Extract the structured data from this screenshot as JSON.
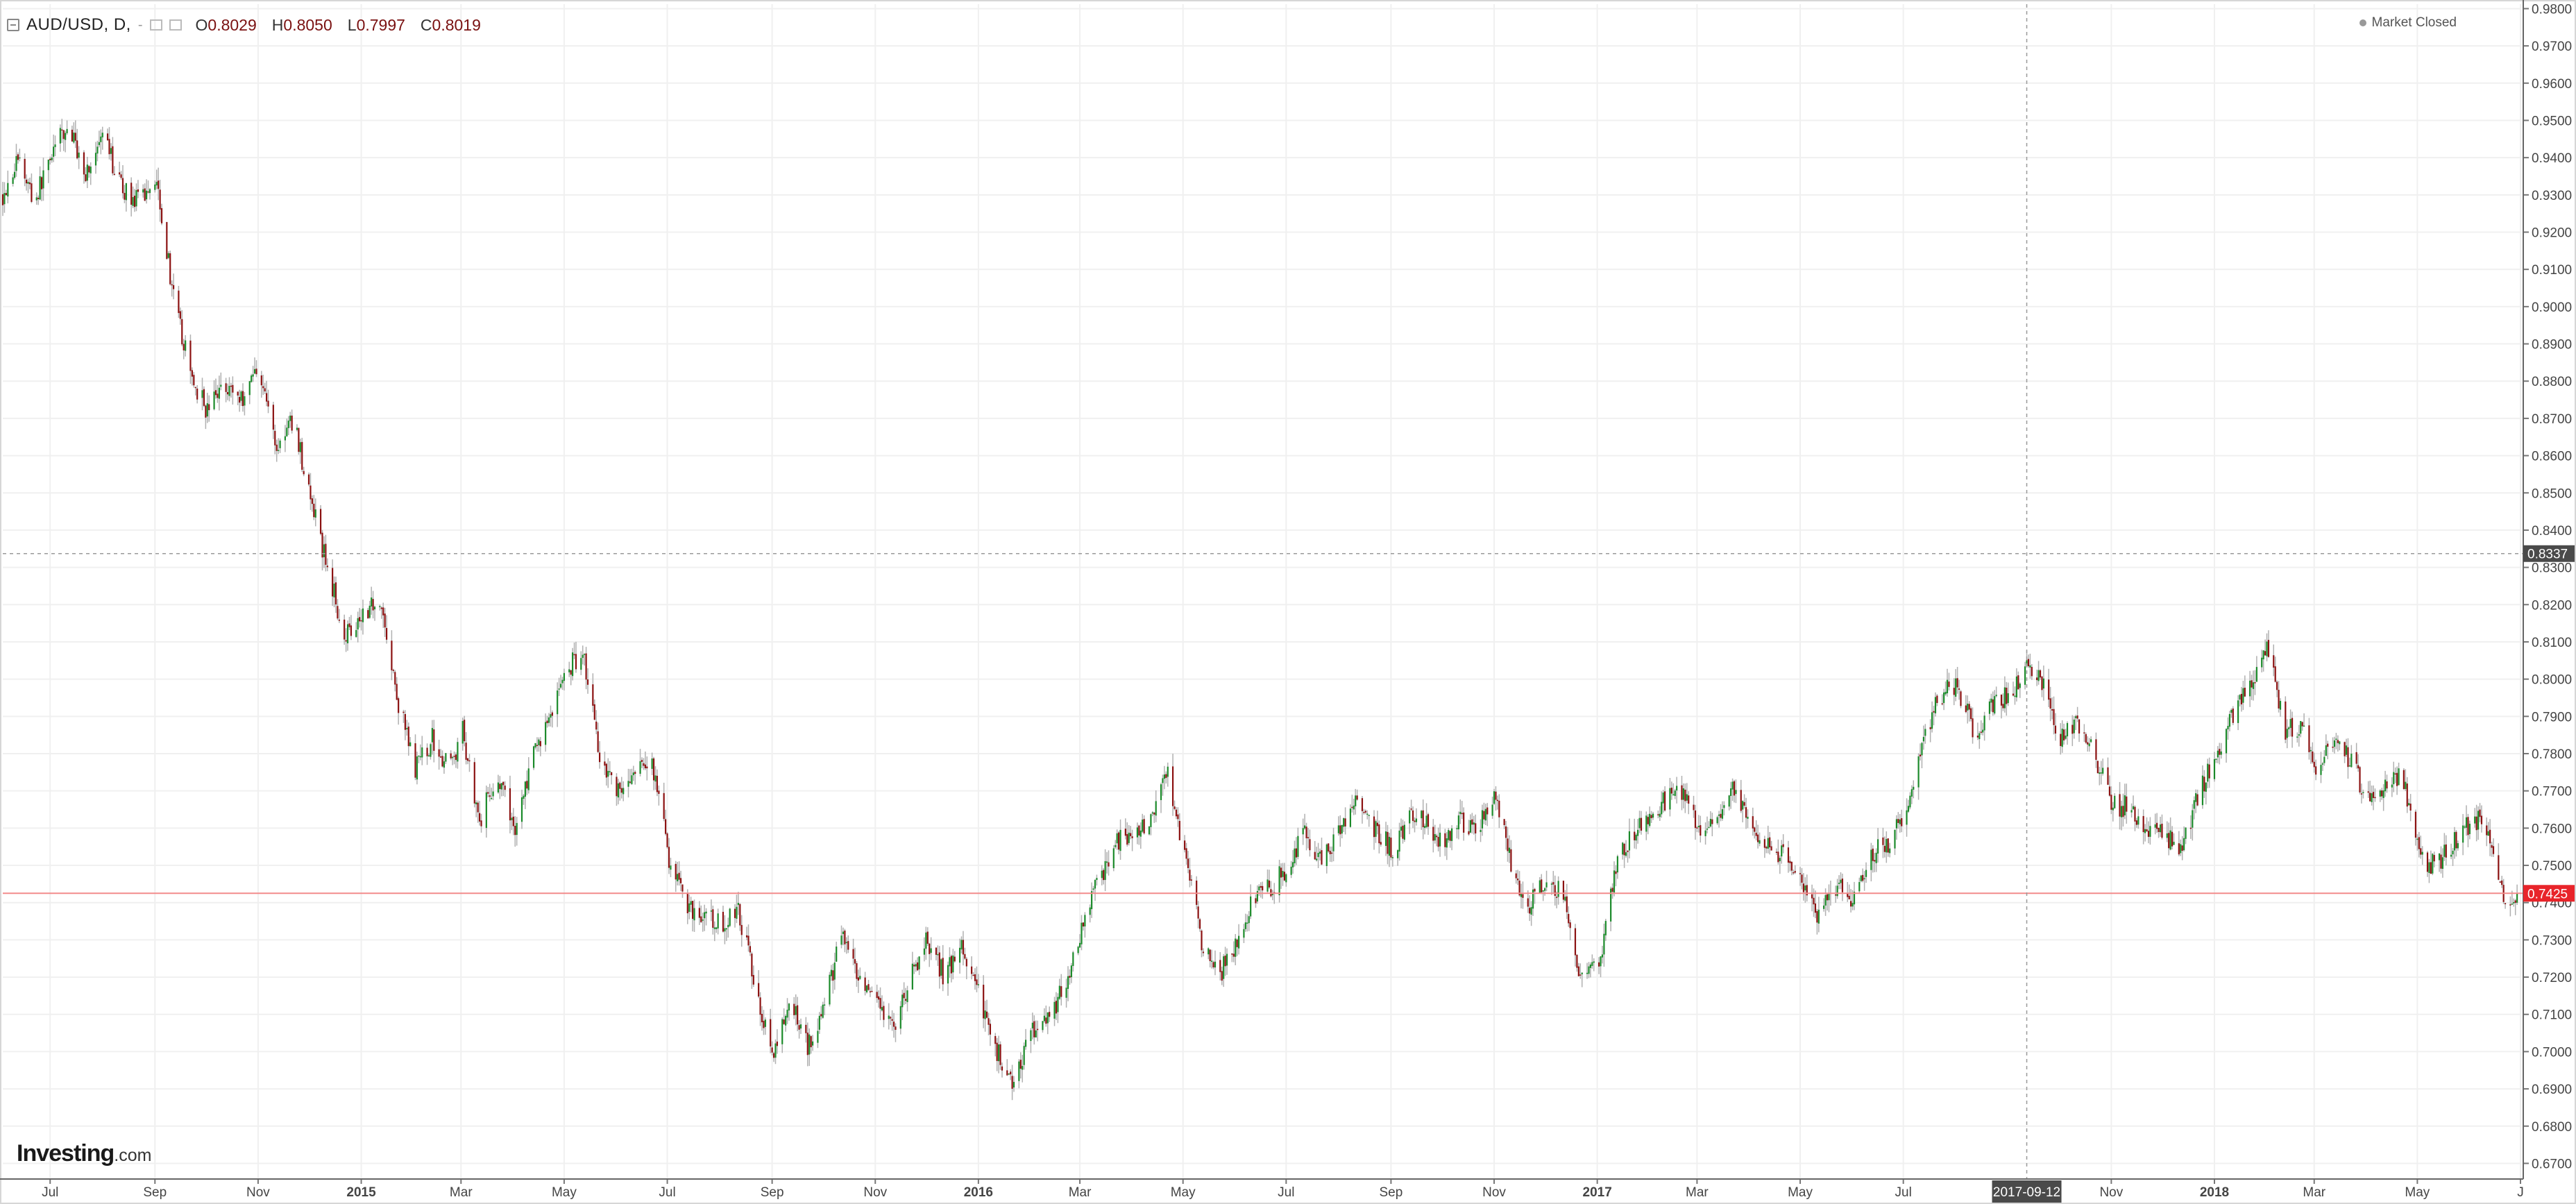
{
  "header": {
    "symbol": "AUD/USD, D,",
    "dash": "-",
    "open_label": "O",
    "open": "0.8029",
    "high_label": "H",
    "high": "0.8050",
    "low_label": "L",
    "low": "0.7997",
    "close_label": "C",
    "close": "0.8019",
    "status": "Market Closed"
  },
  "logo": {
    "brand": "Investing",
    "suffix": ".com"
  },
  "crosshair": {
    "date_label": "2017-09-12",
    "price_label": "0.8337",
    "price": 0.8337,
    "date": "2017-09-12"
  },
  "last_price": {
    "label": "0.7425",
    "value": 0.7425
  },
  "colors": {
    "up": "#1b8a2a",
    "down": "#8b1111",
    "last_price_line": "#f28b8b",
    "last_price_tag": "#e8242a",
    "crosshair_tag": "#4a4a4a",
    "grid": "#f0f0f0"
  },
  "chart_data": {
    "type": "candlestick",
    "title": "AUD/USD, D,",
    "interval": "D",
    "y_axis": {
      "side": "right",
      "range": [
        0.6658,
        0.9812
      ],
      "ticks": [
        "0.9800",
        "0.9700",
        "0.9600",
        "0.9500",
        "0.9400",
        "0.9300",
        "0.9200",
        "0.9100",
        "0.9000",
        "0.8900",
        "0.8800",
        "0.8700",
        "0.8600",
        "0.8500",
        "0.8400",
        "0.8300",
        "0.8200",
        "0.8100",
        "0.8000",
        "0.7900",
        "0.7800",
        "0.7700",
        "0.7600",
        "0.7500",
        "0.7400",
        "0.7300",
        "0.7200",
        "0.7100",
        "0.7000",
        "0.6900",
        "0.6800",
        "0.6700"
      ]
    },
    "x_axis": {
      "range": [
        "2014-06-03",
        "2018-07-01"
      ],
      "ticks": [
        {
          "date": "2014-07-01",
          "label": "Jul",
          "bold": false
        },
        {
          "date": "2014-09-01",
          "label": "Sep",
          "bold": false
        },
        {
          "date": "2014-11-01",
          "label": "Nov",
          "bold": false
        },
        {
          "date": "2015-01-01",
          "label": "2015",
          "bold": true
        },
        {
          "date": "2015-03-01",
          "label": "Mar",
          "bold": false
        },
        {
          "date": "2015-05-01",
          "label": "May",
          "bold": false
        },
        {
          "date": "2015-07-01",
          "label": "Jul",
          "bold": false
        },
        {
          "date": "2015-09-01",
          "label": "Sep",
          "bold": false
        },
        {
          "date": "2015-11-01",
          "label": "Nov",
          "bold": false
        },
        {
          "date": "2016-01-01",
          "label": "2016",
          "bold": true
        },
        {
          "date": "2016-03-01",
          "label": "Mar",
          "bold": false
        },
        {
          "date": "2016-05-01",
          "label": "May",
          "bold": false
        },
        {
          "date": "2016-07-01",
          "label": "Jul",
          "bold": false
        },
        {
          "date": "2016-09-01",
          "label": "Sep",
          "bold": false
        },
        {
          "date": "2016-11-01",
          "label": "Nov",
          "bold": false
        },
        {
          "date": "2017-01-01",
          "label": "2017",
          "bold": true
        },
        {
          "date": "2017-03-01",
          "label": "Mar",
          "bold": false
        },
        {
          "date": "2017-05-01",
          "label": "May",
          "bold": false
        },
        {
          "date": "2017-07-01",
          "label": "Jul",
          "bold": false
        },
        {
          "date": "2017-11-01",
          "label": "Nov",
          "bold": false
        },
        {
          "date": "2018-01-01",
          "label": "2018",
          "bold": true
        },
        {
          "date": "2018-03-01",
          "label": "Mar",
          "bold": false
        },
        {
          "date": "2018-05-01",
          "label": "May",
          "bold": false
        },
        {
          "date": "2018-07-01",
          "label": "J",
          "bold": false
        }
      ]
    },
    "grid": true,
    "price_path": [
      {
        "date": "2014-06-03",
        "close": 0.93
      },
      {
        "date": "2014-06-12",
        "close": 0.94
      },
      {
        "date": "2014-06-22",
        "close": 0.928
      },
      {
        "date": "2014-07-02",
        "close": 0.942
      },
      {
        "date": "2014-07-12",
        "close": 0.948
      },
      {
        "date": "2014-07-22",
        "close": 0.936
      },
      {
        "date": "2014-08-02",
        "close": 0.945
      },
      {
        "date": "2014-08-12",
        "close": 0.932
      },
      {
        "date": "2014-08-22",
        "close": 0.928
      },
      {
        "date": "2014-09-02",
        "close": 0.935
      },
      {
        "date": "2014-09-12",
        "close": 0.902
      },
      {
        "date": "2014-09-22",
        "close": 0.882
      },
      {
        "date": "2014-10-02",
        "close": 0.872
      },
      {
        "date": "2014-10-12",
        "close": 0.88
      },
      {
        "date": "2014-10-22",
        "close": 0.875
      },
      {
        "date": "2014-11-01",
        "close": 0.885
      },
      {
        "date": "2014-11-12",
        "close": 0.862
      },
      {
        "date": "2014-11-22",
        "close": 0.87
      },
      {
        "date": "2014-12-02",
        "close": 0.848
      },
      {
        "date": "2014-12-12",
        "close": 0.83
      },
      {
        "date": "2014-12-22",
        "close": 0.812
      },
      {
        "date": "2015-01-02",
        "close": 0.818
      },
      {
        "date": "2015-01-12",
        "close": 0.822
      },
      {
        "date": "2015-01-22",
        "close": 0.795
      },
      {
        "date": "2015-02-02",
        "close": 0.776
      },
      {
        "date": "2015-02-12",
        "close": 0.784
      },
      {
        "date": "2015-02-22",
        "close": 0.776
      },
      {
        "date": "2015-03-02",
        "close": 0.786
      },
      {
        "date": "2015-03-12",
        "close": 0.762
      },
      {
        "date": "2015-03-22",
        "close": 0.774
      },
      {
        "date": "2015-04-02",
        "close": 0.76
      },
      {
        "date": "2015-04-12",
        "close": 0.778
      },
      {
        "date": "2015-04-22",
        "close": 0.79
      },
      {
        "date": "2015-05-02",
        "close": 0.802
      },
      {
        "date": "2015-05-12",
        "close": 0.808
      },
      {
        "date": "2015-05-22",
        "close": 0.78
      },
      {
        "date": "2015-06-02",
        "close": 0.77
      },
      {
        "date": "2015-06-12",
        "close": 0.774
      },
      {
        "date": "2015-06-22",
        "close": 0.778
      },
      {
        "date": "2015-07-02",
        "close": 0.752
      },
      {
        "date": "2015-07-12",
        "close": 0.74
      },
      {
        "date": "2015-07-22",
        "close": 0.736
      },
      {
        "date": "2015-08-02",
        "close": 0.734
      },
      {
        "date": "2015-08-12",
        "close": 0.738
      },
      {
        "date": "2015-08-22",
        "close": 0.718
      },
      {
        "date": "2015-09-02",
        "close": 0.698
      },
      {
        "date": "2015-09-12",
        "close": 0.714
      },
      {
        "date": "2015-09-22",
        "close": 0.702
      },
      {
        "date": "2015-10-02",
        "close": 0.712
      },
      {
        "date": "2015-10-12",
        "close": 0.732
      },
      {
        "date": "2015-10-22",
        "close": 0.718
      },
      {
        "date": "2015-11-02",
        "close": 0.712
      },
      {
        "date": "2015-11-12",
        "close": 0.706
      },
      {
        "date": "2015-11-22",
        "close": 0.72
      },
      {
        "date": "2015-12-02",
        "close": 0.73
      },
      {
        "date": "2015-12-12",
        "close": 0.72
      },
      {
        "date": "2015-12-22",
        "close": 0.728
      },
      {
        "date": "2016-01-02",
        "close": 0.714
      },
      {
        "date": "2016-01-12",
        "close": 0.7
      },
      {
        "date": "2016-01-22",
        "close": 0.692
      },
      {
        "date": "2016-02-02",
        "close": 0.706
      },
      {
        "date": "2016-02-12",
        "close": 0.71
      },
      {
        "date": "2016-02-22",
        "close": 0.718
      },
      {
        "date": "2016-03-02",
        "close": 0.732
      },
      {
        "date": "2016-03-12",
        "close": 0.746
      },
      {
        "date": "2016-03-22",
        "close": 0.756
      },
      {
        "date": "2016-04-02",
        "close": 0.758
      },
      {
        "date": "2016-04-12",
        "close": 0.762
      },
      {
        "date": "2016-04-22",
        "close": 0.776
      },
      {
        "date": "2016-05-02",
        "close": 0.752
      },
      {
        "date": "2016-05-12",
        "close": 0.73
      },
      {
        "date": "2016-05-22",
        "close": 0.72
      },
      {
        "date": "2016-06-02",
        "close": 0.73
      },
      {
        "date": "2016-06-12",
        "close": 0.742
      },
      {
        "date": "2016-06-22",
        "close": 0.744
      },
      {
        "date": "2016-07-02",
        "close": 0.75
      },
      {
        "date": "2016-07-12",
        "close": 0.76
      },
      {
        "date": "2016-07-22",
        "close": 0.75
      },
      {
        "date": "2016-08-02",
        "close": 0.76
      },
      {
        "date": "2016-08-12",
        "close": 0.768
      },
      {
        "date": "2016-08-22",
        "close": 0.76
      },
      {
        "date": "2016-09-02",
        "close": 0.754
      },
      {
        "date": "2016-09-12",
        "close": 0.764
      },
      {
        "date": "2016-09-22",
        "close": 0.762
      },
      {
        "date": "2016-10-02",
        "close": 0.756
      },
      {
        "date": "2016-10-12",
        "close": 0.762
      },
      {
        "date": "2016-10-22",
        "close": 0.76
      },
      {
        "date": "2016-11-02",
        "close": 0.768
      },
      {
        "date": "2016-11-12",
        "close": 0.748
      },
      {
        "date": "2016-11-22",
        "close": 0.74
      },
      {
        "date": "2016-12-02",
        "close": 0.746
      },
      {
        "date": "2016-12-12",
        "close": 0.742
      },
      {
        "date": "2016-12-22",
        "close": 0.72
      },
      {
        "date": "2017-01-02",
        "close": 0.722
      },
      {
        "date": "2017-01-12",
        "close": 0.75
      },
      {
        "date": "2017-01-22",
        "close": 0.758
      },
      {
        "date": "2017-02-02",
        "close": 0.764
      },
      {
        "date": "2017-02-12",
        "close": 0.768
      },
      {
        "date": "2017-02-22",
        "close": 0.77
      },
      {
        "date": "2017-03-02",
        "close": 0.758
      },
      {
        "date": "2017-03-12",
        "close": 0.762
      },
      {
        "date": "2017-03-22",
        "close": 0.77
      },
      {
        "date": "2017-04-02",
        "close": 0.76
      },
      {
        "date": "2017-04-12",
        "close": 0.755
      },
      {
        "date": "2017-04-22",
        "close": 0.752
      },
      {
        "date": "2017-05-02",
        "close": 0.745
      },
      {
        "date": "2017-05-12",
        "close": 0.736
      },
      {
        "date": "2017-05-22",
        "close": 0.745
      },
      {
        "date": "2017-06-02",
        "close": 0.74
      },
      {
        "date": "2017-06-12",
        "close": 0.753
      },
      {
        "date": "2017-06-22",
        "close": 0.756
      },
      {
        "date": "2017-07-02",
        "close": 0.764
      },
      {
        "date": "2017-07-12",
        "close": 0.782
      },
      {
        "date": "2017-07-22",
        "close": 0.796
      },
      {
        "date": "2017-08-02",
        "close": 0.798
      },
      {
        "date": "2017-08-12",
        "close": 0.786
      },
      {
        "date": "2017-08-22",
        "close": 0.792
      },
      {
        "date": "2017-09-02",
        "close": 0.796
      },
      {
        "date": "2017-09-12",
        "close": 0.804
      },
      {
        "date": "2017-09-22",
        "close": 0.798
      },
      {
        "date": "2017-10-02",
        "close": 0.784
      },
      {
        "date": "2017-10-12",
        "close": 0.788
      },
      {
        "date": "2017-10-22",
        "close": 0.78
      },
      {
        "date": "2017-11-02",
        "close": 0.766
      },
      {
        "date": "2017-11-12",
        "close": 0.766
      },
      {
        "date": "2017-11-22",
        "close": 0.76
      },
      {
        "date": "2017-12-02",
        "close": 0.758
      },
      {
        "date": "2017-12-12",
        "close": 0.754
      },
      {
        "date": "2017-12-22",
        "close": 0.768
      },
      {
        "date": "2018-01-02",
        "close": 0.78
      },
      {
        "date": "2018-01-12",
        "close": 0.79
      },
      {
        "date": "2018-01-22",
        "close": 0.798
      },
      {
        "date": "2018-02-02",
        "close": 0.808
      },
      {
        "date": "2018-02-12",
        "close": 0.786
      },
      {
        "date": "2018-02-22",
        "close": 0.788
      },
      {
        "date": "2018-03-02",
        "close": 0.776
      },
      {
        "date": "2018-03-12",
        "close": 0.784
      },
      {
        "date": "2018-03-22",
        "close": 0.778
      },
      {
        "date": "2018-04-02",
        "close": 0.768
      },
      {
        "date": "2018-04-12",
        "close": 0.772
      },
      {
        "date": "2018-04-22",
        "close": 0.774
      },
      {
        "date": "2018-05-02",
        "close": 0.752
      },
      {
        "date": "2018-05-12",
        "close": 0.75
      },
      {
        "date": "2018-05-22",
        "close": 0.756
      },
      {
        "date": "2018-06-02",
        "close": 0.762
      },
      {
        "date": "2018-06-10",
        "close": 0.762
      },
      {
        "date": "2018-06-17",
        "close": 0.746
      },
      {
        "date": "2018-06-24",
        "close": 0.74
      },
      {
        "date": "2018-06-29",
        "close": 0.7425
      }
    ]
  }
}
